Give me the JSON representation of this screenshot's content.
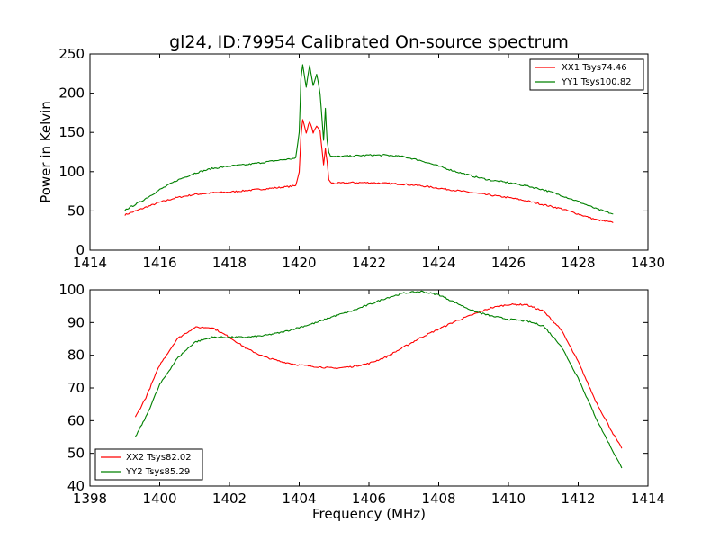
{
  "figure": {
    "title": "gl24, ID:79954 Calibrated On-source spectrum"
  },
  "chart_data": [
    {
      "type": "line",
      "title": "gl24, ID:79954 Calibrated On-source spectrum",
      "xlabel": "",
      "ylabel": "Power in Kelvin",
      "xlim": [
        1414,
        1430
      ],
      "ylim": [
        0,
        250
      ],
      "xticks": [
        1414,
        1416,
        1418,
        1420,
        1422,
        1424,
        1426,
        1428,
        1430
      ],
      "yticks": [
        0,
        50,
        100,
        150,
        200,
        250
      ],
      "grid": false,
      "legend_position": "top-right",
      "series": [
        {
          "name": "XX1 Tsys74.46",
          "color": "#ff0000",
          "x": [
            1415.0,
            1415.5,
            1416.0,
            1416.5,
            1417.0,
            1417.5,
            1418.0,
            1418.5,
            1419.0,
            1419.5,
            1419.9,
            1420.0,
            1420.05,
            1420.1,
            1420.2,
            1420.3,
            1420.4,
            1420.5,
            1420.6,
            1420.7,
            1420.75,
            1420.8,
            1420.85,
            1420.9,
            1421.0,
            1421.5,
            1422.0,
            1422.5,
            1423.0,
            1423.5,
            1424.0,
            1424.5,
            1425.0,
            1425.5,
            1426.0,
            1426.5,
            1427.0,
            1427.5,
            1428.0,
            1428.5,
            1429.0
          ],
          "y": [
            45,
            53,
            61,
            67,
            71,
            73,
            74,
            76,
            78,
            80,
            82,
            100,
            145,
            166,
            150,
            164,
            150,
            157,
            152,
            108,
            130,
            112,
            90,
            86,
            85,
            86,
            86,
            85,
            84,
            82,
            79,
            76,
            73,
            70,
            67,
            63,
            58,
            53,
            46,
            39,
            35
          ]
        },
        {
          "name": "YY1 Tsys100.82",
          "color": "#008000",
          "x": [
            1415.0,
            1415.5,
            1416.0,
            1416.5,
            1417.0,
            1417.5,
            1418.0,
            1418.5,
            1419.0,
            1419.5,
            1419.9,
            1420.0,
            1420.05,
            1420.1,
            1420.2,
            1420.3,
            1420.4,
            1420.5,
            1420.6,
            1420.7,
            1420.75,
            1420.8,
            1420.85,
            1420.9,
            1421.0,
            1421.5,
            1422.0,
            1422.5,
            1423.0,
            1423.5,
            1424.0,
            1424.5,
            1425.0,
            1425.5,
            1426.0,
            1426.5,
            1427.0,
            1427.5,
            1428.0,
            1428.5,
            1429.0
          ],
          "y": [
            51,
            63,
            77,
            89,
            98,
            104,
            107,
            109,
            112,
            115,
            117,
            150,
            218,
            237,
            208,
            235,
            210,
            225,
            200,
            140,
            180,
            140,
            125,
            120,
            119,
            120,
            121,
            121,
            119,
            114,
            107,
            100,
            94,
            89,
            86,
            82,
            77,
            70,
            62,
            53,
            46
          ]
        }
      ]
    },
    {
      "type": "line",
      "title": "",
      "xlabel": "Frequency (MHz)",
      "ylabel": "",
      "xlim": [
        1398,
        1414
      ],
      "ylim": [
        40,
        100
      ],
      "xticks": [
        1398,
        1400,
        1402,
        1404,
        1406,
        1408,
        1410,
        1412,
        1414
      ],
      "yticks": [
        40,
        50,
        60,
        70,
        80,
        90,
        100
      ],
      "grid": false,
      "legend_position": "bottom-left",
      "series": [
        {
          "name": "XX2 Tsys82.02",
          "color": "#ff0000",
          "x": [
            1399.3,
            1399.6,
            1400.0,
            1400.5,
            1401.0,
            1401.5,
            1402.0,
            1402.5,
            1403.0,
            1403.5,
            1404.0,
            1404.5,
            1405.0,
            1405.5,
            1406.0,
            1406.5,
            1407.0,
            1407.5,
            1408.0,
            1408.5,
            1409.0,
            1409.5,
            1410.0,
            1410.5,
            1411.0,
            1411.5,
            1412.0,
            1412.5,
            1413.0,
            1413.25
          ],
          "y": [
            61,
            67,
            77,
            85,
            88.5,
            88.5,
            85.5,
            82,
            79.5,
            78,
            77,
            76.5,
            76,
            76.5,
            77.5,
            79.5,
            82.5,
            85.5,
            88,
            90.5,
            92.5,
            94.5,
            95.5,
            95.5,
            93.5,
            88,
            78,
            66,
            56,
            51.5
          ]
        },
        {
          "name": "YY2 Tsys85.29",
          "color": "#008000",
          "x": [
            1399.3,
            1399.6,
            1400.0,
            1400.5,
            1401.0,
            1401.5,
            1402.0,
            1402.5,
            1403.0,
            1403.5,
            1404.0,
            1404.5,
            1405.0,
            1405.5,
            1406.0,
            1406.5,
            1407.0,
            1407.5,
            1408.0,
            1408.5,
            1409.0,
            1409.5,
            1410.0,
            1410.5,
            1411.0,
            1411.5,
            1412.0,
            1412.5,
            1413.0,
            1413.25
          ],
          "y": [
            55,
            61,
            71,
            79,
            84,
            85.5,
            85.5,
            85.5,
            86,
            87,
            88.5,
            90,
            92,
            93.5,
            95.5,
            97.5,
            99,
            99.5,
            98.5,
            96,
            93.5,
            92,
            91,
            90.5,
            89,
            83,
            73,
            61,
            50.5,
            45.5
          ]
        }
      ]
    }
  ]
}
